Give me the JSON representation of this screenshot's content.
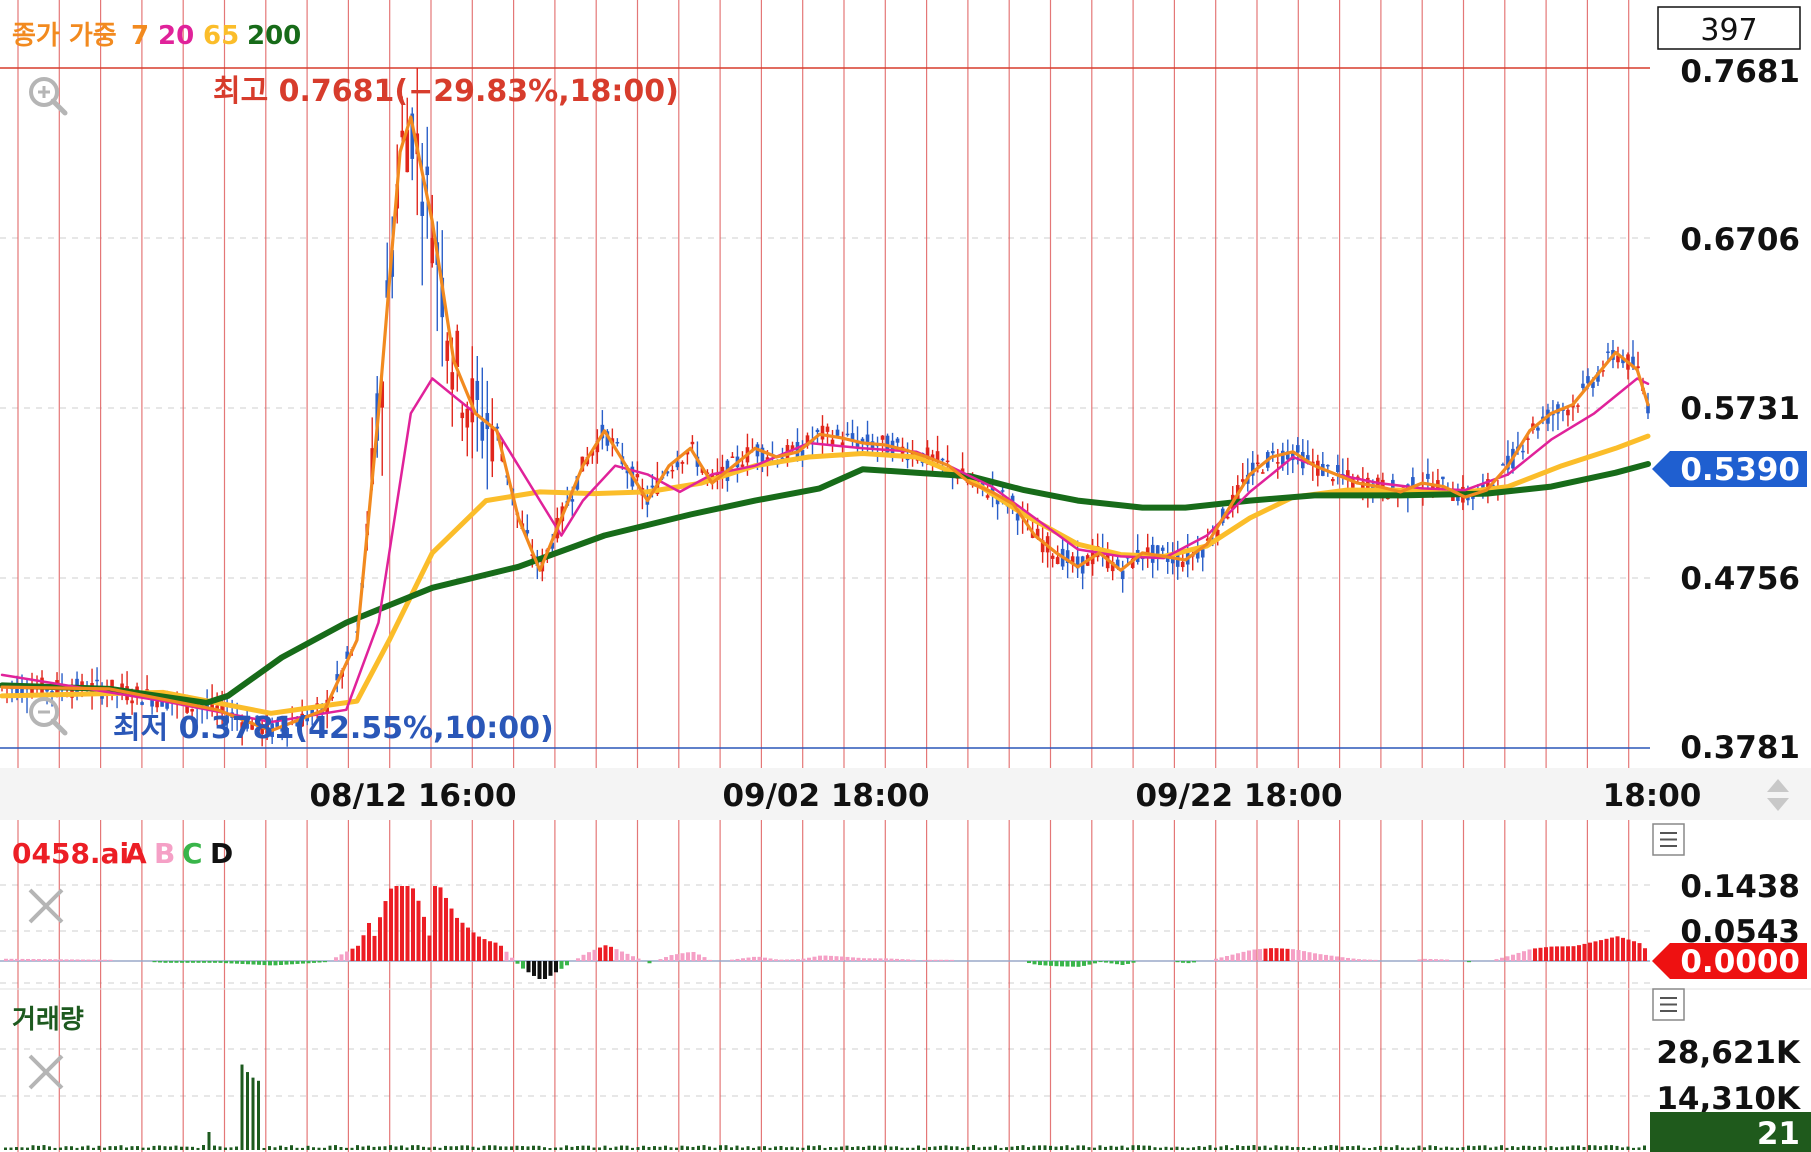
{
  "colors": {
    "ma7": "#f28a1f",
    "ma20": "#e0229a",
    "ma65": "#fbbd2a",
    "ma200": "#176b19",
    "candle_up": "#e0261c",
    "candle_down": "#2a5fc9",
    "high_line": "#d73c2c",
    "low_line": "#2a57b8",
    "current_price_tag": "#1f5fd0",
    "osc_tag": "#ee1111",
    "vol_tag": "#1f5a1c",
    "osc_pos": "#ec1e25",
    "osc_pos_fade": "#f5a0c6",
    "osc_neg": "#111111",
    "osc_neg_fade": "#39b54a",
    "vol_bar": "#1d5a1f",
    "vgrid": "#e06060"
  },
  "header": {
    "legend_prefix": "종가 가중",
    "ma_periods": [
      "7",
      "20",
      "65",
      "200"
    ],
    "box_value": "397"
  },
  "icons": {
    "zoom_in": "zoom-in-icon",
    "zoom_out": "zoom-out-icon",
    "close": "close-x-icon",
    "menu": "hamburger-menu-icon",
    "scroll": "up-down-arrows-icon"
  },
  "chart_data": [
    {
      "type": "candlestick",
      "title": "종가 가중 7 20 65 200",
      "yticks": [
        "0.7681",
        "0.6706",
        "0.5731",
        "0.4756",
        "0.3781"
      ],
      "ylim": [
        0.3781,
        0.7681
      ],
      "x_ticks": [
        "08/12 16:00",
        "09/02 18:00",
        "09/22 18:00",
        "18:00"
      ],
      "high_label": "최고 0.7681(−29.83%,18:00)",
      "low_label": "최저 0.3781(42.55%,10:00)",
      "current_price": "0.5390",
      "moving_averages": [
        {
          "name": "7",
          "approx_path": [
            [
              0,
              0.413
            ],
            [
              10,
              0.412
            ],
            [
              20,
              0.4
            ],
            [
              25,
              0.388
            ],
            [
              30,
              0.4
            ],
            [
              33,
              0.44
            ],
            [
              35,
              0.57
            ],
            [
              37,
              0.72
            ],
            [
              38,
              0.74
            ],
            [
              40,
              0.68
            ],
            [
              42,
              0.6
            ],
            [
              44,
              0.57
            ],
            [
              46,
              0.56
            ],
            [
              48,
              0.51
            ],
            [
              50,
              0.48
            ],
            [
              52,
              0.51
            ],
            [
              54,
              0.54
            ],
            [
              56,
              0.56
            ],
            [
              58,
              0.54
            ],
            [
              60,
              0.52
            ],
            [
              62,
              0.54
            ],
            [
              64,
              0.55
            ],
            [
              66,
              0.53
            ],
            [
              68,
              0.54
            ],
            [
              70,
              0.55
            ],
            [
              72,
              0.545
            ],
            [
              74,
              0.548
            ],
            [
              76,
              0.558
            ],
            [
              78,
              0.556
            ],
            [
              80,
              0.553
            ],
            [
              82,
              0.552
            ],
            [
              84,
              0.549
            ],
            [
              86,
              0.545
            ],
            [
              88,
              0.54
            ],
            [
              90,
              0.53
            ],
            [
              92,
              0.525
            ],
            [
              94,
              0.518
            ],
            [
              96,
              0.5
            ],
            [
              98,
              0.49
            ],
            [
              100,
              0.482
            ],
            [
              102,
              0.49
            ],
            [
              104,
              0.48
            ],
            [
              106,
              0.49
            ],
            [
              108,
              0.488
            ],
            [
              110,
              0.486
            ],
            [
              112,
              0.495
            ],
            [
              114,
              0.515
            ],
            [
              116,
              0.535
            ],
            [
              118,
              0.545
            ],
            [
              120,
              0.548
            ],
            [
              122,
              0.54
            ],
            [
              124,
              0.535
            ],
            [
              126,
              0.53
            ],
            [
              128,
              0.528
            ],
            [
              130,
              0.525
            ],
            [
              132,
              0.53
            ],
            [
              134,
              0.528
            ],
            [
              136,
              0.522
            ],
            [
              138,
              0.526
            ],
            [
              140,
              0.54
            ],
            [
              142,
              0.56
            ],
            [
              144,
              0.57
            ],
            [
              146,
              0.575
            ],
            [
              148,
              0.59
            ],
            [
              150,
              0.605
            ],
            [
              152,
              0.595
            ],
            [
              153,
              0.575
            ]
          ]
        },
        {
          "name": "20",
          "approx_path": [
            [
              0,
              0.42
            ],
            [
              15,
              0.405
            ],
            [
              25,
              0.393
            ],
            [
              32,
              0.4
            ],
            [
              35,
              0.45
            ],
            [
              38,
              0.57
            ],
            [
              40,
              0.59
            ],
            [
              42,
              0.58
            ],
            [
              46,
              0.56
            ],
            [
              50,
              0.52
            ],
            [
              52,
              0.5
            ],
            [
              54,
              0.52
            ],
            [
              57,
              0.54
            ],
            [
              60,
              0.535
            ],
            [
              63,
              0.525
            ],
            [
              66,
              0.535
            ],
            [
              70,
              0.54
            ],
            [
              75,
              0.553
            ],
            [
              80,
              0.55
            ],
            [
              85,
              0.548
            ],
            [
              88,
              0.54
            ],
            [
              92,
              0.528
            ],
            [
              96,
              0.51
            ],
            [
              100,
              0.492
            ],
            [
              104,
              0.488
            ],
            [
              108,
              0.487
            ],
            [
              112,
              0.5
            ],
            [
              116,
              0.525
            ],
            [
              120,
              0.545
            ],
            [
              124,
              0.535
            ],
            [
              128,
              0.53
            ],
            [
              132,
              0.527
            ],
            [
              136,
              0.526
            ],
            [
              140,
              0.535
            ],
            [
              144,
              0.555
            ],
            [
              148,
              0.57
            ],
            [
              152,
              0.59
            ],
            [
              153,
              0.587
            ]
          ]
        },
        {
          "name": "65",
          "approx_path": [
            [
              0,
              0.408
            ],
            [
              15,
              0.41
            ],
            [
              25,
              0.398
            ],
            [
              33,
              0.405
            ],
            [
              36,
              0.44
            ],
            [
              40,
              0.49
            ],
            [
              45,
              0.52
            ],
            [
              50,
              0.525
            ],
            [
              55,
              0.524
            ],
            [
              60,
              0.525
            ],
            [
              65,
              0.53
            ],
            [
              70,
              0.54
            ],
            [
              75,
              0.545
            ],
            [
              80,
              0.547
            ],
            [
              85,
              0.545
            ],
            [
              90,
              0.532
            ],
            [
              95,
              0.512
            ],
            [
              100,
              0.495
            ],
            [
              104,
              0.489
            ],
            [
              108,
              0.488
            ],
            [
              112,
              0.494
            ],
            [
              116,
              0.51
            ],
            [
              120,
              0.522
            ],
            [
              125,
              0.526
            ],
            [
              130,
              0.526
            ],
            [
              135,
              0.524
            ],
            [
              140,
              0.528
            ],
            [
              145,
              0.54
            ],
            [
              150,
              0.55
            ],
            [
              153,
              0.557
            ]
          ]
        },
        {
          "name": "200",
          "approx_path": [
            [
              0,
              0.414
            ],
            [
              10,
              0.412
            ],
            [
              19,
              0.404
            ],
            [
              21,
              0.408
            ],
            [
              26,
              0.43
            ],
            [
              32,
              0.45
            ],
            [
              40,
              0.47
            ],
            [
              48,
              0.482
            ],
            [
              56,
              0.5
            ],
            [
              64,
              0.512
            ],
            [
              70,
              0.52
            ],
            [
              76,
              0.527
            ],
            [
              80,
              0.538
            ],
            [
              85,
              0.536
            ],
            [
              90,
              0.534
            ],
            [
              95,
              0.526
            ],
            [
              100,
              0.52
            ],
            [
              106,
              0.516
            ],
            [
              110,
              0.516
            ],
            [
              116,
              0.52
            ],
            [
              122,
              0.523
            ],
            [
              130,
              0.523
            ],
            [
              138,
              0.524
            ],
            [
              144,
              0.528
            ],
            [
              150,
              0.536
            ],
            [
              153,
              0.541
            ]
          ]
        }
      ]
    },
    {
      "type": "bar",
      "title": "0458.ai",
      "legend": [
        "A",
        "B",
        "C",
        "D"
      ],
      "yticks": [
        "0.1438",
        "0.0543"
      ],
      "current_value": "0.0000"
    },
    {
      "type": "bar",
      "title": "거래량",
      "yticks": [
        "28,621K",
        "14,310K"
      ],
      "current_value": "21"
    }
  ]
}
